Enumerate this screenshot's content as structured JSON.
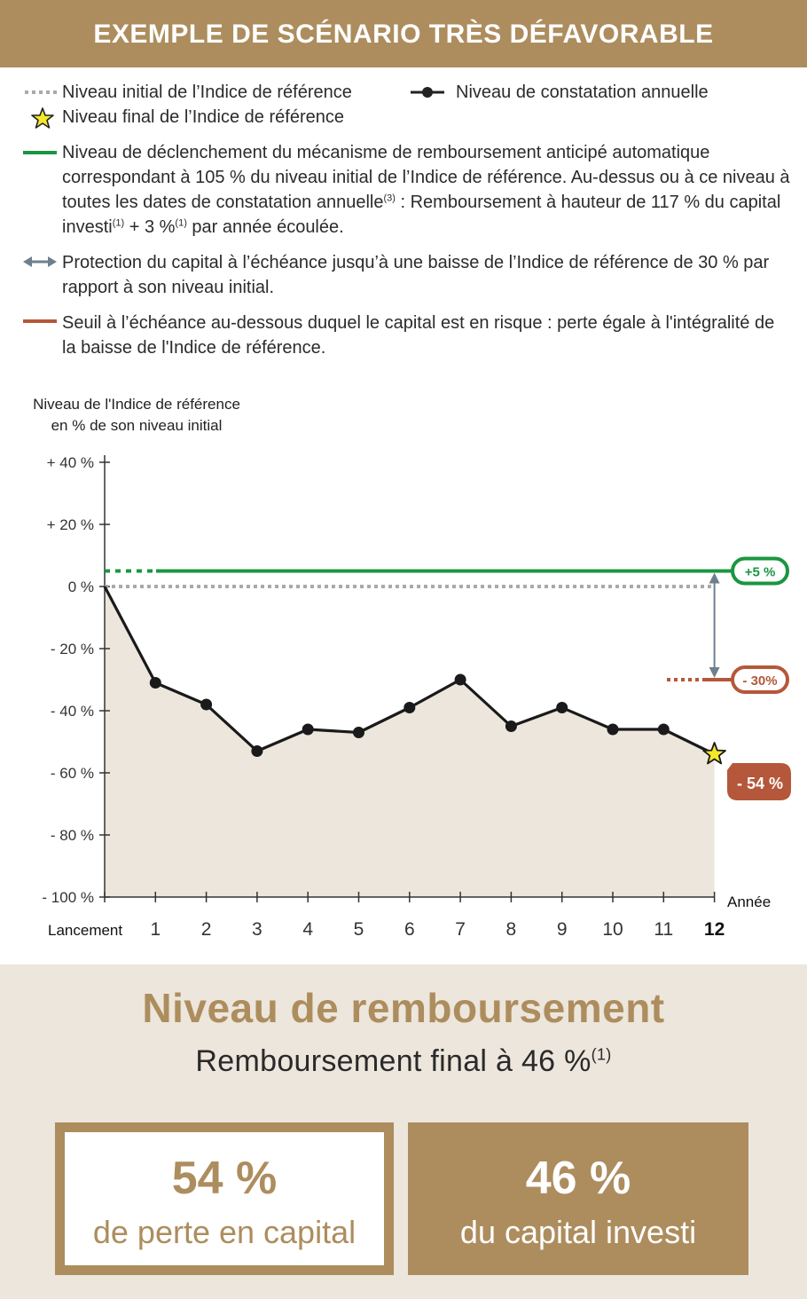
{
  "banner": {
    "title": "EXEMPLE DE SCÉNARIO TRÈS DÉFAVORABLE"
  },
  "legend": {
    "initial_level": "Niveau initial de l’Indice de référence",
    "annual_observation": "Niveau de constatation annuelle",
    "final_level": "Niveau final de l’Indice de référence",
    "trigger_line1": "Niveau de déclenchement du mécanisme de remboursement anticipé automatique",
    "trigger_line2": "correspondant à 105 % du niveau initial de l’Indice de référence. Au-dessus ou à ce niveau à",
    "trigger_line3a": "toutes les dates de constatation annuelle",
    "trigger_line3_sup": "(3)",
    "trigger_line3b": " : Remboursement à hauteur de 117 % du capital",
    "trigger_line4a": "investi",
    "trigger_line4_sup1": "(1)",
    "trigger_line4b": " + 3 %",
    "trigger_line4_sup2": "(1)",
    "trigger_line4c": " par année écoulée.",
    "protection_line1": "Protection du capital à l’échéance jusqu’à une baisse de l’Indice de référence de 30 % par",
    "protection_line2": "rapport à son niveau initial.",
    "risk_line1": "Seuil à l’échéance au-dessous duquel le capital est en risque : perte égale à l'intégralité de",
    "risk_line2": "la baisse de l'Indice de référence."
  },
  "colors": {
    "gold": "#ad8d5e",
    "green": "#1a9641",
    "risk": "#b5573a",
    "initial_dotted": "#a9a9a9",
    "protection_arrow": "#6e7f8d",
    "area_fill": "#ece6dc",
    "star": "#f5e82a"
  },
  "chart_data": {
    "type": "line",
    "title": "",
    "ylabel_line1": "Niveau de l'Indice de référence",
    "ylabel_line2": "en % de son niveau initial",
    "xlabel": "Année",
    "x_start_label": "Lancement",
    "x": [
      0,
      1,
      2,
      3,
      4,
      5,
      6,
      7,
      8,
      9,
      10,
      11,
      12
    ],
    "x_tick_labels": [
      "1",
      "2",
      "3",
      "4",
      "5",
      "6",
      "7",
      "8",
      "9",
      "10",
      "11",
      "12"
    ],
    "y_tick_labels": [
      "+ 40 %",
      "+ 20 %",
      "0 %",
      "- 20 %",
      "- 40 %",
      "- 60 %",
      "- 80 %",
      "- 100 %"
    ],
    "y_ticks": [
      40,
      20,
      0,
      -20,
      -40,
      -60,
      -80,
      -100
    ],
    "ylim": [
      -100,
      40
    ],
    "series": [
      {
        "values": [
          0,
          -31,
          -38,
          -53,
          -46,
          -47,
          -39,
          -30,
          -45,
          -39,
          -46,
          -46,
          -54
        ]
      }
    ],
    "reference_lines": {
      "initial": 0,
      "trigger": 5,
      "risk_threshold": -30
    },
    "labels": {
      "trigger": "+5 %",
      "risk": "- 30%",
      "final": "- 54 %"
    },
    "final_marker": "star",
    "grid": false
  },
  "summary": {
    "title": "Niveau de remboursement",
    "subtitle": "Remboursement final à 46 %",
    "subtitle_sup": "(1)",
    "loss_value": "54 %",
    "loss_label": "de perte en capital",
    "repay_value": "46 %",
    "repay_label": "du capital investi"
  }
}
